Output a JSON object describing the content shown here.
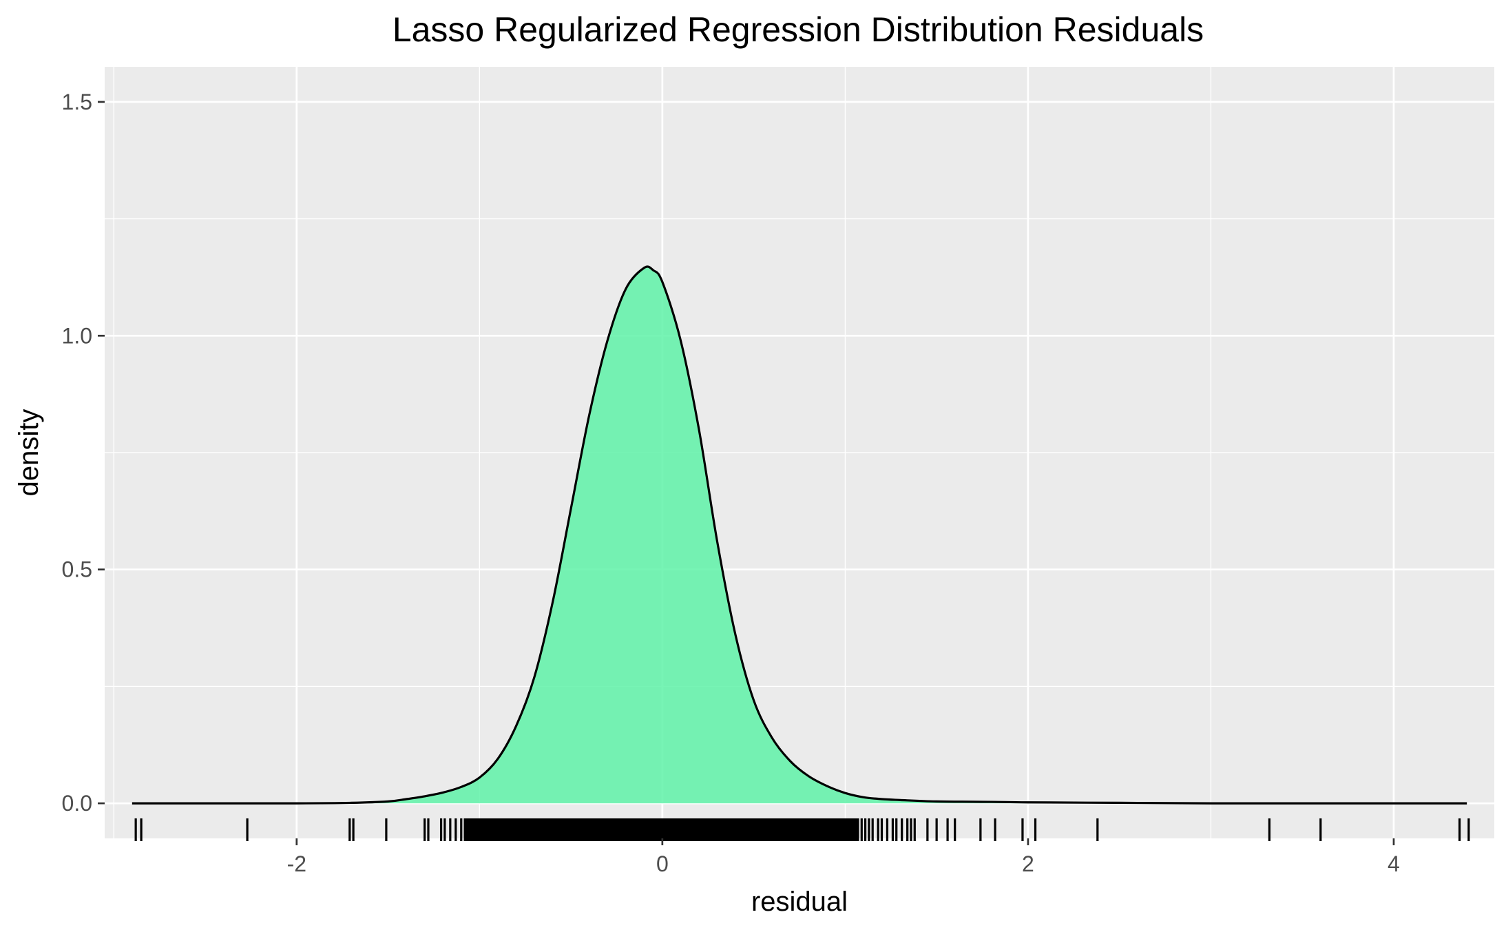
{
  "chart_data": {
    "type": "area",
    "title": "Lasso Regularized Regression Distribution Residuals",
    "xlabel": "residual",
    "ylabel": "density",
    "xlim": [
      -3.05,
      4.55
    ],
    "ylim": [
      -0.075,
      1.575
    ],
    "x_ticks": [
      -2,
      0,
      2,
      4
    ],
    "x_tick_labels": [
      "-2",
      "0",
      "2",
      "4"
    ],
    "y_ticks": [
      0.0,
      0.5,
      1.0,
      1.5
    ],
    "y_tick_labels": [
      "0.0",
      "0.5",
      "1.0",
      "1.5"
    ],
    "grid": true,
    "legend": "none",
    "fill_color": "#5ff2a8",
    "line_color": "#000000",
    "panel_color": "#ebebeb",
    "series": [
      {
        "x": [
          -2.9,
          -2.5,
          -2.0,
          -1.7,
          -1.5,
          -1.4,
          -1.3,
          -1.2,
          -1.1,
          -1.0,
          -0.9,
          -0.8,
          -0.7,
          -0.6,
          -0.5,
          -0.4,
          -0.3,
          -0.2,
          -0.1,
          -0.05,
          0.0,
          0.1,
          0.2,
          0.3,
          0.4,
          0.5,
          0.6,
          0.7,
          0.8,
          0.9,
          1.0,
          1.1,
          1.2,
          1.3,
          1.5,
          1.8,
          2.0,
          2.5,
          3.0,
          3.5,
          4.0,
          4.4
        ],
        "y": [
          0.0,
          0.0,
          0.0,
          0.001,
          0.004,
          0.009,
          0.015,
          0.023,
          0.035,
          0.055,
          0.095,
          0.165,
          0.27,
          0.43,
          0.63,
          0.83,
          0.99,
          1.1,
          1.145,
          1.14,
          1.115,
          0.99,
          0.8,
          0.56,
          0.36,
          0.22,
          0.14,
          0.09,
          0.058,
          0.037,
          0.022,
          0.013,
          0.009,
          0.007,
          0.004,
          0.003,
          0.002,
          0.001,
          0.0,
          0.0,
          0.0,
          0.0
        ]
      }
    ],
    "rug": [
      -2.88,
      -2.85,
      -2.27,
      -1.71,
      -1.69,
      -1.51,
      -1.3,
      -1.28,
      -1.21,
      -1.19,
      -1.16,
      -1.13,
      -1.1,
      -1.08,
      -1.06,
      -1.03,
      -1.0,
      -0.97,
      -0.93,
      -0.9,
      -0.86,
      -0.82,
      -0.78,
      -0.74,
      -0.7,
      -0.66,
      -0.62,
      -0.58,
      -0.54,
      -0.5,
      -0.46,
      -0.42,
      -0.38,
      -0.34,
      -0.3,
      -0.26,
      -0.22,
      -0.18,
      -0.14,
      -0.1,
      -0.06,
      -0.02,
      0.02,
      0.06,
      0.1,
      0.14,
      0.18,
      0.22,
      0.26,
      0.3,
      0.34,
      0.38,
      0.42,
      0.46,
      0.5,
      0.54,
      0.58,
      0.62,
      0.66,
      0.7,
      0.74,
      0.78,
      0.82,
      0.86,
      0.9,
      0.93,
      0.96,
      0.99,
      1.02,
      1.05,
      1.07,
      1.09,
      1.11,
      1.13,
      1.15,
      1.18,
      1.2,
      1.23,
      1.26,
      1.28,
      1.31,
      1.34,
      1.36,
      1.38,
      1.45,
      1.5,
      1.56,
      1.6,
      1.74,
      1.82,
      1.97,
      2.04,
      2.38,
      3.32,
      3.6,
      4.36,
      4.41
    ]
  }
}
